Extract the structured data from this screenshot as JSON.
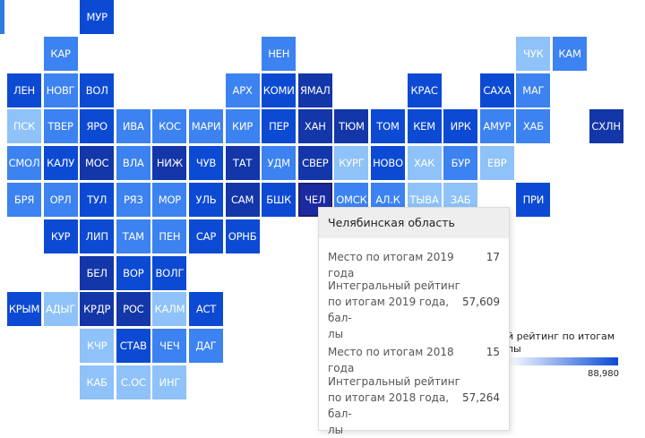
{
  "palette": {
    "light": "#8ec2f8",
    "medium": "#3c82f0",
    "dark": "#0c4ad4",
    "darkest": "#1336a8",
    "active": "#1b2aa0"
  },
  "regions": [
    {
      "code": "МУР",
      "level": "dark"
    },
    {
      "code": "КАР",
      "level": "medium"
    },
    {
      "code": "НЕН",
      "level": "medium"
    },
    {
      "code": "ЧУК",
      "level": "light"
    },
    {
      "code": "КАМ",
      "level": "medium"
    },
    {
      "code": "ЛЕН",
      "level": "dark"
    },
    {
      "code": "НОВГ",
      "level": "medium"
    },
    {
      "code": "ВОЛ",
      "level": "dark"
    },
    {
      "code": "АРХ",
      "level": "medium"
    },
    {
      "code": "КОМИ",
      "level": "dark"
    },
    {
      "code": "ЯМАЛ",
      "level": "darkest"
    },
    {
      "code": "КРАС",
      "level": "dark"
    },
    {
      "code": "САХА",
      "level": "dark"
    },
    {
      "code": "МАГ",
      "level": "medium"
    },
    {
      "code": "ПСК",
      "level": "light"
    },
    {
      "code": "ТВЕР",
      "level": "medium"
    },
    {
      "code": "ЯРО",
      "level": "dark"
    },
    {
      "code": "ИВА",
      "level": "medium"
    },
    {
      "code": "КОС",
      "level": "medium"
    },
    {
      "code": "МАРИ",
      "level": "medium"
    },
    {
      "code": "КИР",
      "level": "medium"
    },
    {
      "code": "ПЕР",
      "level": "dark"
    },
    {
      "code": "ХАН",
      "level": "darkest"
    },
    {
      "code": "ТЮМ",
      "level": "darkest"
    },
    {
      "code": "ТОМ",
      "level": "dark"
    },
    {
      "code": "КЕМ",
      "level": "dark"
    },
    {
      "code": "ИРК",
      "level": "dark"
    },
    {
      "code": "АМУР",
      "level": "medium"
    },
    {
      "code": "ХАБ",
      "level": "medium"
    },
    {
      "code": "СХЛН",
      "level": "darkest"
    },
    {
      "code": "СМОЛ",
      "level": "medium"
    },
    {
      "code": "КАЛУ",
      "level": "dark"
    },
    {
      "code": "МОС",
      "level": "darkest"
    },
    {
      "code": "ВЛА",
      "level": "medium"
    },
    {
      "code": "НИЖ",
      "level": "darkest"
    },
    {
      "code": "ЧУВ",
      "level": "dark"
    },
    {
      "code": "ТАТ",
      "level": "darkest"
    },
    {
      "code": "УДМ",
      "level": "medium"
    },
    {
      "code": "СВЕР",
      "level": "darkest"
    },
    {
      "code": "КУРГ",
      "level": "light"
    },
    {
      "code": "НОВО",
      "level": "dark"
    },
    {
      "code": "ХАК",
      "level": "light"
    },
    {
      "code": "БУР",
      "level": "medium"
    },
    {
      "code": "ЕВР",
      "level": "light"
    },
    {
      "code": "БРЯ",
      "level": "medium"
    },
    {
      "code": "ОРЛ",
      "level": "medium"
    },
    {
      "code": "ТУЛ",
      "level": "dark"
    },
    {
      "code": "РЯЗ",
      "level": "medium"
    },
    {
      "code": "МОР",
      "level": "medium"
    },
    {
      "code": "УЛЬ",
      "level": "dark"
    },
    {
      "code": "САМ",
      "level": "darkest"
    },
    {
      "code": "БШК",
      "level": "dark"
    },
    {
      "code": "ЧЕЛ",
      "level": "active"
    },
    {
      "code": "ОМСК",
      "level": "medium"
    },
    {
      "code": "АЛ.К",
      "level": "medium"
    },
    {
      "code": "ТЫВА",
      "level": "light"
    },
    {
      "code": "ЗАБ",
      "level": "light"
    },
    {
      "code": "ПРИ",
      "level": "dark"
    },
    {
      "code": "КУР",
      "level": "dark"
    },
    {
      "code": "ЛИП",
      "level": "dark"
    },
    {
      "code": "ТАМ",
      "level": "medium"
    },
    {
      "code": "ПЕН",
      "level": "medium"
    },
    {
      "code": "САР",
      "level": "dark"
    },
    {
      "code": "ОРНБ",
      "level": "dark"
    },
    {
      "code": "БЕЛ",
      "level": "darkest"
    },
    {
      "code": "ВОР",
      "level": "dark"
    },
    {
      "code": "ВОЛГ",
      "level": "dark"
    },
    {
      "code": "КРЫМ",
      "level": "dark"
    },
    {
      "code": "АДЫГ",
      "level": "light"
    },
    {
      "code": "КРДР",
      "level": "darkest"
    },
    {
      "code": "РОС",
      "level": "darkest"
    },
    {
      "code": "КАЛМ",
      "level": "light"
    },
    {
      "code": "АСТ",
      "level": "dark"
    },
    {
      "code": "КЧР",
      "level": "light"
    },
    {
      "code": "СТАВ",
      "level": "dark"
    },
    {
      "code": "ЧЕЧ",
      "level": "medium"
    },
    {
      "code": "ДАГ",
      "level": "medium"
    },
    {
      "code": "КАБ",
      "level": "light"
    },
    {
      "code": "С.ОС",
      "level": "light"
    },
    {
      "code": "ИНГ",
      "level": "light"
    }
  ],
  "legend": {
    "title": "й рейтинг по итогам\nлы",
    "max_value": "88,980",
    "gradient_start": "#ffffff",
    "gradient_end": "#0a4ad6"
  },
  "tooltip": {
    "region_name": "Челябинская область",
    "rows": [
      {
        "label": "Место по итогам 2019 года",
        "value": "17"
      },
      {
        "label": "Интегральный рейтинг\nпо итогам 2019 года, бал-\nлы",
        "value": "57,609"
      },
      {
        "label": "Место по итогам 2018 года",
        "value": "15"
      },
      {
        "label": "Интегральный рейтинг\nпо итогам 2018 года, бал-\nлы",
        "value": "57,264"
      }
    ]
  }
}
